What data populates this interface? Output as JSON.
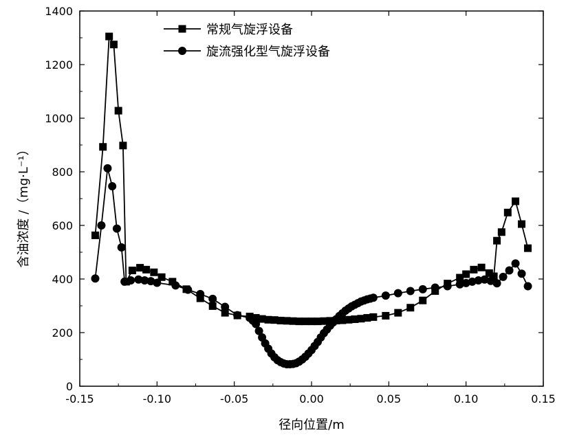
{
  "chart_data": {
    "type": "line",
    "xlabel": "径向位置/m",
    "ylabel": "含油浓度 /（mg·L⁻¹）",
    "xlim": [
      -0.15,
      0.15
    ],
    "ylim": [
      0,
      1400
    ],
    "x_ticks": [
      -0.15,
      -0.1,
      -0.05,
      0.0,
      0.05,
      0.1,
      0.15
    ],
    "x_tick_labels": [
      "-0.15",
      "-0.10",
      "-0.05",
      "0.00",
      "0.05",
      "0.10",
      "0.15"
    ],
    "y_ticks": [
      0,
      200,
      400,
      600,
      800,
      1000,
      1200,
      1400
    ],
    "y_tick_labels": [
      "0",
      "200",
      "400",
      "600",
      "800",
      "1000",
      "1200",
      "1400"
    ],
    "legend_position": "top-center",
    "grid": false,
    "series": [
      {
        "name": "常规气旋浮设备",
        "marker": "square",
        "color": "#000000",
        "x": [
          -0.14,
          -0.135,
          -0.131,
          -0.128,
          -0.125,
          -0.122,
          -0.12,
          -0.116,
          -0.111,
          -0.107,
          -0.102,
          -0.097,
          -0.09,
          -0.081,
          -0.072,
          -0.064,
          -0.056,
          -0.048,
          -0.04,
          -0.036,
          -0.032,
          -0.028,
          -0.024,
          -0.02,
          -0.016,
          -0.012,
          -0.008,
          -0.004,
          0.0,
          0.004,
          0.008,
          0.012,
          0.016,
          0.02,
          0.024,
          0.028,
          0.032,
          0.036,
          0.04,
          0.048,
          0.056,
          0.064,
          0.072,
          0.08,
          0.088,
          0.096,
          0.1,
          0.105,
          0.11,
          0.115,
          0.118,
          0.12,
          0.123,
          0.127,
          0.132,
          0.136,
          0.14
        ],
        "y": [
          563,
          893,
          1305,
          1275,
          1028,
          898,
          390,
          432,
          442,
          435,
          425,
          407,
          390,
          362,
          328,
          299,
          274,
          264,
          260,
          255,
          251,
          248,
          247,
          245,
          244,
          243,
          242,
          242,
          242,
          242,
          243,
          244,
          245,
          246,
          248,
          250,
          252,
          255,
          258,
          263,
          274,
          293,
          320,
          355,
          383,
          405,
          418,
          435,
          443,
          422,
          410,
          543,
          575,
          648,
          690,
          605,
          515
        ]
      },
      {
        "name": "旋流强化型气旋浮设备",
        "marker": "circle",
        "color": "#000000",
        "x": [
          -0.14,
          -0.136,
          -0.132,
          -0.129,
          -0.126,
          -0.123,
          -0.121,
          -0.117,
          -0.112,
          -0.108,
          -0.104,
          -0.1,
          -0.088,
          -0.08,
          -0.072,
          -0.064,
          -0.056,
          -0.048,
          -0.04,
          -0.038,
          -0.036,
          -0.034,
          -0.032,
          -0.03,
          -0.028,
          -0.026,
          -0.024,
          -0.022,
          -0.02,
          -0.018,
          -0.016,
          -0.014,
          -0.012,
          -0.01,
          -0.008,
          -0.006,
          -0.004,
          -0.002,
          0.0,
          0.002,
          0.004,
          0.006,
          0.008,
          0.01,
          0.012,
          0.014,
          0.016,
          0.018,
          0.02,
          0.022,
          0.024,
          0.026,
          0.028,
          0.03,
          0.032,
          0.034,
          0.036,
          0.038,
          0.04,
          0.048,
          0.056,
          0.064,
          0.072,
          0.08,
          0.088,
          0.096,
          0.1,
          0.104,
          0.108,
          0.112,
          0.116,
          0.12,
          0.124,
          0.128,
          0.132,
          0.136,
          0.14
        ],
        "y": [
          402,
          600,
          813,
          746,
          588,
          518,
          390,
          395,
          398,
          395,
          392,
          386,
          376,
          360,
          344,
          326,
          296,
          265,
          255,
          245,
          232,
          206,
          182,
          160,
          140,
          122,
          108,
          97,
          90,
          85,
          82,
          82,
          83,
          86,
          92,
          100,
          110,
          122,
          135,
          150,
          165,
          182,
          198,
          212,
          226,
          238,
          250,
          262,
          272,
          282,
          290,
          298,
          304,
          310,
          316,
          320,
          324,
          327,
          330,
          338,
          347,
          355,
          362,
          368,
          373,
          380,
          385,
          390,
          395,
          398,
          393,
          384,
          408,
          432,
          458,
          420,
          373
        ]
      }
    ]
  }
}
